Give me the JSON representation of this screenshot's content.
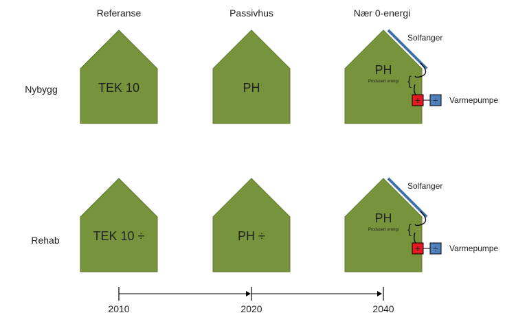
{
  "columns": {
    "reference": "Referanse",
    "passive": "Passivhus",
    "zero": "Nær 0-energi"
  },
  "rows": {
    "new": "Nybygg",
    "rehab": "Rehab"
  },
  "houses": {
    "new_reference": "TEK 10",
    "new_passive": "PH",
    "new_zero": "PH",
    "rehab_reference": "TEK 10 ÷",
    "rehab_passive": "PH ÷",
    "rehab_zero": "PH"
  },
  "production_label": "Produsert energi",
  "brace_symbol": "{",
  "solar_label": "Solfanger",
  "heatpump_label": "Varmepumpe",
  "plus_symbol": "+",
  "minus_symbol": "÷",
  "timeline": {
    "years": [
      "2010",
      "2020",
      "2040"
    ]
  },
  "colors": {
    "house_fill": "#77933c",
    "house_stroke": "#5f7a2c",
    "solar_panel": "#3e70a8",
    "plus_box": "#e31b23",
    "minus_box": "#4f81bd"
  }
}
